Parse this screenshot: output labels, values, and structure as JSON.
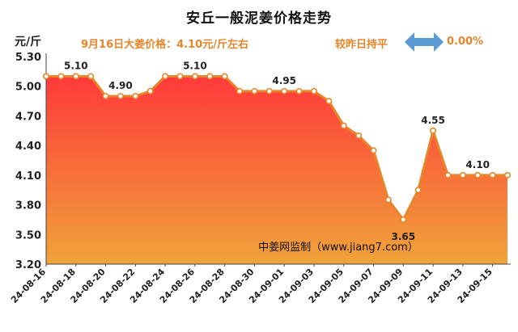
{
  "header": {
    "title": "安丘一般泥姜价格走势",
    "unit": "元/斤",
    "today_price": "9月16日大姜价格：4.10元/斤左右",
    "change_label": "较昨日持平",
    "change_value": "0.00%",
    "change_icon": "double-arrow-icon"
  },
  "colors": {
    "line": "#e8852a",
    "fill_top": "#ff3a3a",
    "fill_bottom": "#f0a33a",
    "arrow": "#5b9bd5"
  },
  "chart_data": {
    "type": "area",
    "title": "安丘一般泥姜价格走势",
    "xlabel": "",
    "ylabel": "元/斤",
    "ylim": [
      3.2,
      5.3
    ],
    "yticks": [
      "5.30",
      "5.00",
      "4.70",
      "4.40",
      "4.10",
      "3.80",
      "3.50",
      "3.20"
    ],
    "x": [
      "24-08-16",
      "24-08-17",
      "24-08-18",
      "24-08-19",
      "24-08-20",
      "24-08-21",
      "24-08-22",
      "24-08-23",
      "24-08-24",
      "24-08-25",
      "24-08-26",
      "24-08-27",
      "24-08-28",
      "24-08-29",
      "24-08-30",
      "24-08-31",
      "24-09-01",
      "24-09-02",
      "24-09-03",
      "24-09-04",
      "24-09-05",
      "24-09-06",
      "24-09-07",
      "24-09-08",
      "24-09-09",
      "24-09-10",
      "24-09-11",
      "24-09-12",
      "24-09-13",
      "24-09-14",
      "24-09-15",
      "24-09-16"
    ],
    "xtick_labels": [
      "24-08-16",
      "24-08-18",
      "24-08-20",
      "24-08-22",
      "24-08-24",
      "24-08-26",
      "24-08-28",
      "24-08-30",
      "24-09-01",
      "24-09-03",
      "24-09-05",
      "24-09-07",
      "24-09-09",
      "24-09-11",
      "24-09-13",
      "24-09-15"
    ],
    "values": [
      5.1,
      5.1,
      5.1,
      5.1,
      4.9,
      4.9,
      4.9,
      4.95,
      5.1,
      5.1,
      5.1,
      5.1,
      5.1,
      4.95,
      4.95,
      4.95,
      4.95,
      4.95,
      4.95,
      4.85,
      4.6,
      4.5,
      4.35,
      3.85,
      3.65,
      3.95,
      4.55,
      4.1,
      4.1,
      4.1,
      4.1,
      4.1
    ],
    "annotations": [
      {
        "index": 2,
        "text": "5.10"
      },
      {
        "index": 5,
        "text": "4.90"
      },
      {
        "index": 10,
        "text": "5.10"
      },
      {
        "index": 16,
        "text": "4.95"
      },
      {
        "index": 24,
        "text": "3.65"
      },
      {
        "index": 26,
        "text": "4.55"
      },
      {
        "index": 29,
        "text": "4.10"
      }
    ],
    "watermark": "中姜网监制（www.jiang7.com）",
    "grid": false
  }
}
